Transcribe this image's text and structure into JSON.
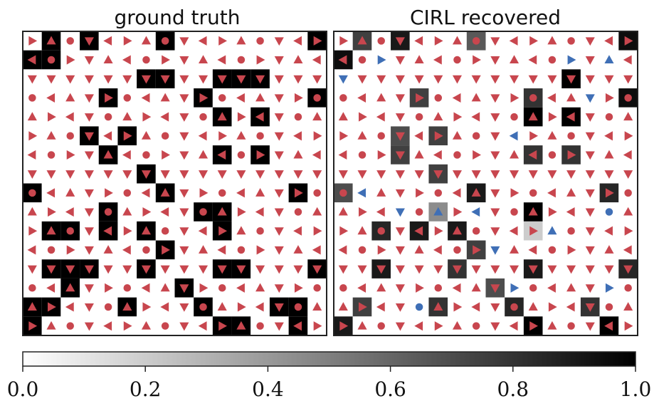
{
  "chart_data": [
    {
      "type": "heatmap",
      "title": "ground truth",
      "grid_size": [
        16,
        16
      ],
      "cell_shading": [
        [
          0,
          1,
          0,
          1,
          0,
          0,
          0,
          1,
          0,
          0,
          0,
          0,
          0,
          0,
          0,
          1
        ],
        [
          1,
          1,
          0,
          0,
          0,
          0,
          0,
          0,
          0,
          0,
          0,
          0,
          0,
          0,
          0,
          0
        ],
        [
          0,
          0,
          0,
          0,
          0,
          0,
          1,
          1,
          0,
          0,
          1,
          1,
          1,
          0,
          0,
          0
        ],
        [
          0,
          0,
          0,
          0,
          1,
          0,
          0,
          0,
          0,
          1,
          0,
          0,
          0,
          0,
          0,
          1
        ],
        [
          0,
          0,
          0,
          0,
          0,
          0,
          0,
          0,
          0,
          0,
          1,
          0,
          1,
          0,
          0,
          0
        ],
        [
          0,
          0,
          0,
          1,
          0,
          1,
          0,
          0,
          0,
          0,
          0,
          0,
          0,
          0,
          0,
          0
        ],
        [
          0,
          0,
          0,
          0,
          1,
          0,
          0,
          0,
          0,
          0,
          1,
          0,
          1,
          0,
          0,
          0
        ],
        [
          0,
          0,
          0,
          0,
          0,
          0,
          1,
          0,
          0,
          0,
          0,
          0,
          0,
          0,
          0,
          0
        ],
        [
          1,
          0,
          0,
          0,
          0,
          0,
          0,
          1,
          0,
          0,
          0,
          0,
          0,
          0,
          1,
          0
        ],
        [
          0,
          0,
          0,
          0,
          1,
          0,
          0,
          0,
          0,
          1,
          1,
          0,
          0,
          0,
          0,
          0
        ],
        [
          0,
          1,
          1,
          0,
          1,
          0,
          1,
          0,
          0,
          0,
          1,
          0,
          0,
          0,
          0,
          0
        ],
        [
          0,
          0,
          0,
          0,
          0,
          0,
          0,
          1,
          0,
          0,
          0,
          0,
          0,
          0,
          0,
          0
        ],
        [
          0,
          1,
          1,
          1,
          0,
          0,
          1,
          0,
          0,
          0,
          1,
          1,
          0,
          0,
          0,
          1
        ],
        [
          0,
          0,
          1,
          0,
          0,
          0,
          0,
          0,
          1,
          0,
          0,
          0,
          0,
          0,
          0,
          0
        ],
        [
          1,
          1,
          0,
          0,
          0,
          1,
          0,
          0,
          0,
          1,
          0,
          0,
          0,
          1,
          1,
          0
        ],
        [
          1,
          0,
          0,
          0,
          0,
          0,
          0,
          0,
          0,
          0,
          1,
          1,
          0,
          0,
          1,
          0
        ]
      ]
    },
    {
      "type": "heatmap",
      "title": "CIRL recovered",
      "grid_size": [
        16,
        16
      ],
      "cell_shading": [
        [
          0,
          0.75,
          0,
          0.9,
          0,
          0,
          0,
          0.65,
          0,
          0,
          0,
          0,
          0,
          0,
          0,
          0.95
        ],
        [
          0.95,
          0,
          0,
          0,
          0,
          0,
          0,
          0,
          0,
          0,
          0,
          0,
          0,
          0,
          0,
          0
        ],
        [
          0,
          0,
          0,
          0,
          0,
          0,
          0,
          0,
          0,
          0,
          0,
          0,
          1,
          0,
          0,
          0
        ],
        [
          0,
          0,
          0,
          0,
          0.75,
          0,
          0,
          0,
          0,
          0,
          0.8,
          0,
          0,
          0,
          0,
          0.95
        ],
        [
          0,
          0,
          0,
          0,
          0,
          0,
          0,
          0,
          0,
          0,
          1,
          0,
          1,
          0,
          0,
          0
        ],
        [
          0,
          0,
          0,
          0.7,
          0,
          0.75,
          0,
          0,
          0,
          0,
          0,
          0,
          0,
          0,
          0,
          0
        ],
        [
          0,
          0,
          0,
          0.75,
          0,
          0,
          0,
          0,
          0,
          0,
          0.8,
          0,
          0.8,
          0,
          0,
          0
        ],
        [
          0,
          0,
          0,
          0,
          0,
          0.75,
          0,
          0,
          0,
          0,
          0,
          0,
          0,
          0,
          0,
          0
        ],
        [
          0.7,
          0,
          0,
          0,
          0,
          0,
          0,
          0.9,
          0,
          0,
          0,
          0,
          0,
          0,
          0.85,
          0
        ],
        [
          0,
          0,
          0,
          0,
          0,
          0.45,
          0,
          0,
          0,
          0,
          1,
          0,
          0,
          0,
          0,
          0
        ],
        [
          0,
          0,
          0.85,
          0,
          0.9,
          0,
          0.9,
          0,
          0,
          0,
          0.2,
          0,
          0,
          0,
          0,
          0
        ],
        [
          0,
          0,
          0,
          0,
          0,
          0,
          0,
          0.75,
          0,
          0,
          0,
          0,
          0,
          0,
          0,
          0
        ],
        [
          0,
          0,
          0.9,
          0,
          0,
          0,
          0.8,
          0,
          0,
          0,
          0.9,
          0,
          0,
          0,
          0,
          0.85
        ],
        [
          0,
          0,
          0,
          0,
          0,
          0,
          0,
          0,
          0.7,
          0,
          0,
          0,
          0,
          0,
          0,
          0
        ],
        [
          0,
          0.75,
          0,
          0,
          0,
          0.8,
          0,
          0,
          0,
          0.85,
          0,
          0,
          0,
          0.8,
          0,
          0
        ],
        [
          0.9,
          0,
          0,
          0,
          0,
          0,
          0,
          0,
          0,
          0,
          1,
          0,
          0,
          0,
          1,
          0
        ]
      ]
    }
  ],
  "colorbar": {
    "min": 0.0,
    "max": 1.0,
    "ticks": [
      "0.0",
      "0.2",
      "0.4",
      "0.6",
      "0.8",
      "1.0"
    ]
  },
  "colors": {
    "primary_marker": "#c8464e",
    "secondary_marker": "#3f6fb6"
  }
}
